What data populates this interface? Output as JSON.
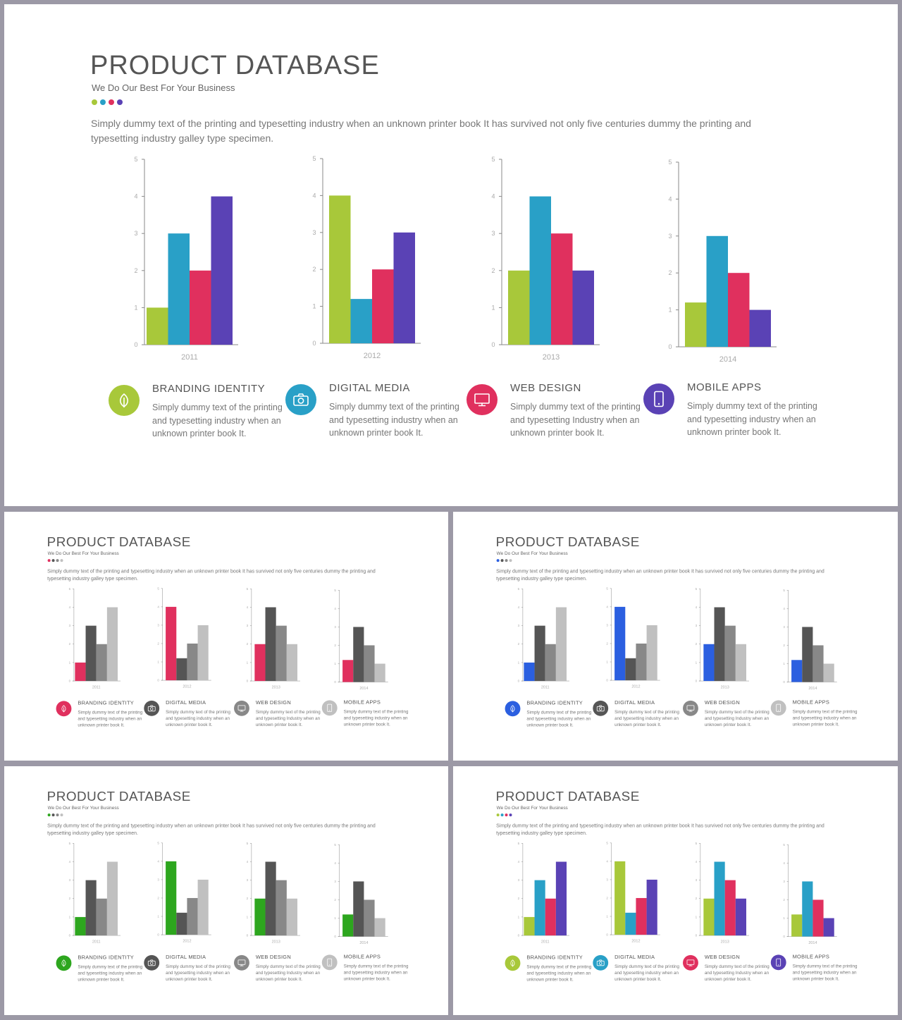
{
  "header": {
    "title": "PRODUCT DATABASE",
    "subtitle": "We Do Our Best For Your Business",
    "description": "Simply dummy text of the printing and typesetting industry when an unknown printer book It has survived not only five centuries dummy the printing and typesetting industry galley type specimen."
  },
  "features": [
    {
      "title": "BRANDING IDENTITY",
      "text": "Simply dummy text of the printing and typesetting industry when an unknown printer book It.",
      "icon": "leaf-icon"
    },
    {
      "title": "DIGITAL MEDIA",
      "text": "Simply dummy text of the printing and typesetting industry when an unknown printer book It.",
      "icon": "camera-icon"
    },
    {
      "title": "WEB DESIGN",
      "text": "Simply dummy text of the printing and typesetting Industry when an unknown printer book It.",
      "icon": "monitor-icon"
    },
    {
      "title": "MOBILE APPS",
      "text": "Simply dummy text of the printing and typesetting industry when an unknown printer book It.",
      "icon": "phone-icon"
    }
  ],
  "chart_data": {
    "type": "bar",
    "ylim": [
      0,
      5
    ],
    "yticks": [
      "0",
      "1",
      "2",
      "3",
      "4",
      "5"
    ],
    "grid": false,
    "charts": [
      {
        "category": "2011",
        "values": [
          1,
          3,
          2,
          4
        ]
      },
      {
        "category": "2012",
        "values": [
          4,
          1.2,
          2,
          3
        ]
      },
      {
        "category": "2013",
        "values": [
          2,
          4,
          3,
          2
        ]
      },
      {
        "category": "2014",
        "values": [
          1.2,
          3,
          2,
          1
        ]
      }
    ]
  },
  "themes": [
    {
      "id": "main",
      "colors": [
        "#a8c83a",
        "#29a0c7",
        "#e0305e",
        "#5a42b5"
      ]
    },
    {
      "id": "s1",
      "colors": [
        "#e0305e",
        "#555555",
        "#888888",
        "#c0c0c0"
      ]
    },
    {
      "id": "s2",
      "colors": [
        "#2b5fe0",
        "#555555",
        "#888888",
        "#c0c0c0"
      ]
    },
    {
      "id": "s3",
      "colors": [
        "#2da61e",
        "#555555",
        "#888888",
        "#c0c0c0"
      ]
    },
    {
      "id": "s4",
      "colors": [
        "#a8c83a",
        "#29a0c7",
        "#e0305e",
        "#5a42b5"
      ]
    }
  ]
}
